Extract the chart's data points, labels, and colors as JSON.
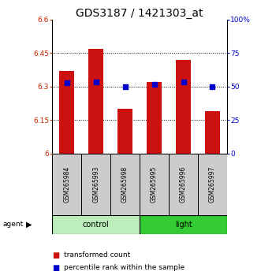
{
  "title": "GDS3187 / 1421303_at",
  "samples": [
    "GSM265984",
    "GSM265993",
    "GSM265998",
    "GSM265995",
    "GSM265996",
    "GSM265997"
  ],
  "transformed_counts": [
    6.37,
    6.47,
    6.2,
    6.32,
    6.42,
    6.19
  ],
  "percentile_ranks_left": [
    6.315,
    6.32,
    6.3,
    6.31,
    6.32,
    6.3
  ],
  "ylim_left": [
    6.0,
    6.6
  ],
  "ylim_right": [
    0,
    100
  ],
  "yticks_left": [
    6.0,
    6.15,
    6.3,
    6.45,
    6.6
  ],
  "ytick_labels_left": [
    "6",
    "6.15",
    "6.3",
    "6.45",
    "6.6"
  ],
  "yticks_right": [
    0,
    25,
    50,
    75,
    100
  ],
  "ytick_labels_right": [
    "0",
    "25",
    "50",
    "75",
    "100%"
  ],
  "grid_ticks": [
    6.15,
    6.3,
    6.45
  ],
  "bar_color": "#cc1111",
  "dot_color": "#0000cc",
  "bg_color": "#ffffff",
  "control_bg": "#bbeebb",
  "light_bg": "#33cc33",
  "sample_bg": "#cccccc",
  "bar_width": 0.5,
  "dot_size": 22,
  "title_fontsize": 10,
  "tick_fontsize": 6.5,
  "legend_fontsize": 6.5,
  "sample_fontsize": 5.5,
  "group_fontsize": 7
}
